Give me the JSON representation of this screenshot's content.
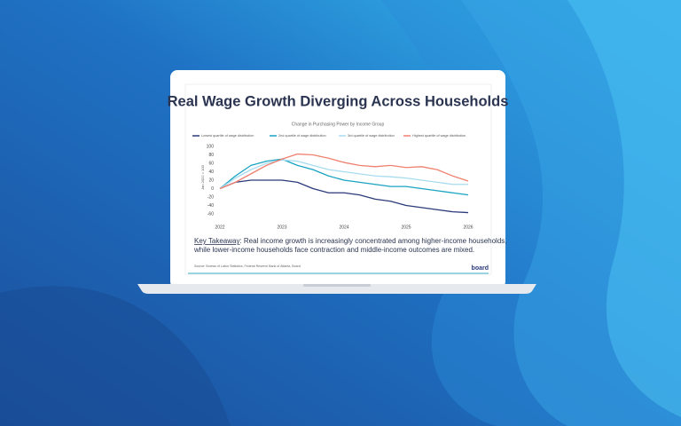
{
  "chart_data": {
    "type": "line",
    "title": "Real Wage Growth Diverging Across Households",
    "subtitle": "Change in Purchasing Power by Income Group",
    "y_label": "Jan 2022 = 100",
    "x": [
      2022,
      2022.25,
      2022.5,
      2022.75,
      2023,
      2023.25,
      2023.5,
      2023.75,
      2024,
      2024.25,
      2024.5,
      2024.75,
      2025,
      2025.25,
      2025.5,
      2025.75,
      2026
    ],
    "series": [
      {
        "name": "Lowest quartile of wage distribution",
        "color": "#2b3a7a",
        "values": [
          0,
          15,
          20,
          20,
          20,
          15,
          0,
          -10,
          -10,
          -15,
          -25,
          -30,
          -40,
          -45,
          -50,
          -55,
          -57
        ]
      },
      {
        "name": "2nd quartile of wage distribution",
        "color": "#1aa3c2",
        "values": [
          0,
          30,
          55,
          65,
          70,
          55,
          45,
          30,
          20,
          15,
          10,
          5,
          5,
          0,
          -5,
          -10,
          -15
        ]
      },
      {
        "name": "3rd quartile of wage distribution",
        "color": "#a7dcef",
        "values": [
          0,
          25,
          45,
          60,
          68,
          65,
          55,
          45,
          40,
          35,
          30,
          28,
          25,
          20,
          15,
          10,
          10
        ]
      },
      {
        "name": "Highest quartile of wage distribution",
        "color": "#f08070",
        "values": [
          0,
          15,
          35,
          55,
          70,
          82,
          80,
          72,
          62,
          55,
          52,
          55,
          50,
          52,
          45,
          30,
          18
        ]
      }
    ],
    "xlim": [
      2022,
      2026
    ],
    "xticks": [
      2022,
      2023,
      2024,
      2025,
      2026
    ],
    "ylim": [
      -60,
      100
    ],
    "yticks": [
      100,
      80,
      60,
      40,
      20,
      0,
      -20,
      -40,
      -60
    ],
    "grid": false,
    "legend": "top"
  },
  "key_takeaway": {
    "label": "Key Takeaway",
    "lines": [
      ": Real income growth is increasingly concentrated among higher-income households,",
      "while lower-income households face contraction and middle-income outcomes are mixed."
    ]
  },
  "source": "Source: Bureau of Labor Statistics, Federal Reserve Bank of Atlanta, Board",
  "logo": "board"
}
